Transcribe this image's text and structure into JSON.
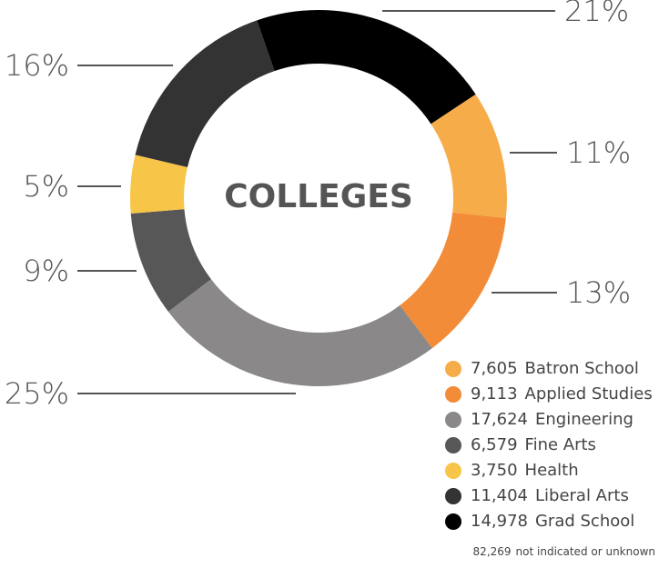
{
  "chart_data": {
    "type": "donut",
    "title": "COLLEGES",
    "categories": [
      "Batron School",
      "Applied Studies",
      "Engineering",
      "Fine Arts",
      "Health",
      "Liberal Arts",
      "Grad School"
    ],
    "values": [
      11,
      13,
      25,
      9,
      5,
      16,
      21
    ],
    "value_labels": [
      "11%",
      "13%",
      "25%",
      "9%",
      "5%",
      "16%",
      "21%"
    ],
    "counts": [
      7605,
      9113,
      17624,
      6579,
      3750,
      11404,
      14978
    ],
    "count_labels": [
      "7,605",
      "9,113",
      "17,624",
      "6,579",
      "3,750",
      "11,404",
      "14,978"
    ],
    "colors": [
      "#f7ac4a",
      "#f28c38",
      "#8a8888",
      "#575757",
      "#f7c548",
      "#333333",
      "#000000"
    ],
    "footnote": {
      "value": 82269,
      "label": "82,269",
      "text": "not indicated or unknown"
    }
  }
}
